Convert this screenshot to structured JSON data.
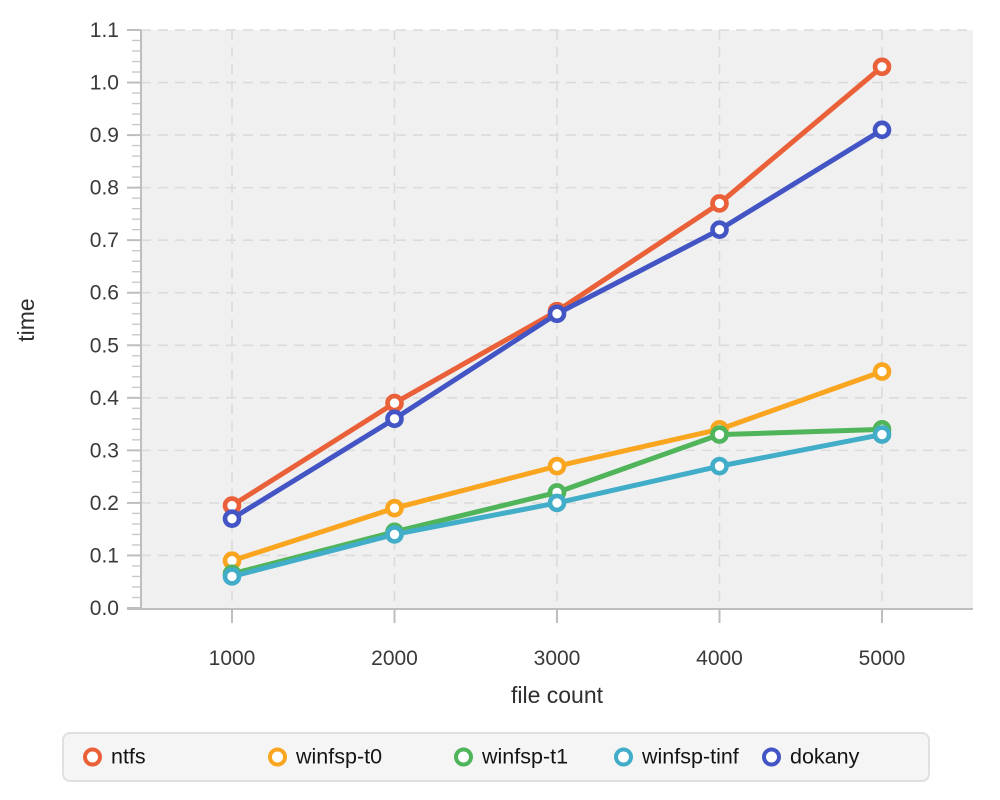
{
  "chart_data": {
    "type": "line",
    "title": "",
    "xlabel": "file count",
    "ylabel": "time",
    "x": [
      1000,
      2000,
      3000,
      4000,
      5000
    ],
    "x_ticks": [
      "1000",
      "2000",
      "3000",
      "4000",
      "5000"
    ],
    "y_ticks": [
      "0.0",
      "0.1",
      "0.2",
      "0.3",
      "0.4",
      "0.5",
      "0.6",
      "0.7",
      "0.8",
      "0.9",
      "1.0",
      "1.1"
    ],
    "xlim": [
      440,
      5560
    ],
    "ylim": [
      0,
      1.1
    ],
    "y_minor_step": 0.02,
    "grid": "dashed",
    "legend_position": "bottom",
    "series": [
      {
        "name": "ntfs",
        "color": "#EA6038",
        "values": [
          0.195,
          0.39,
          0.565,
          0.77,
          1.03
        ]
      },
      {
        "name": "winfsp-t0",
        "color": "#F9A51F",
        "values": [
          0.09,
          0.19,
          0.27,
          0.34,
          0.45
        ]
      },
      {
        "name": "winfsp-t1",
        "color": "#4FB45A",
        "values": [
          0.065,
          0.145,
          0.22,
          0.33,
          0.34
        ]
      },
      {
        "name": "winfsp-tinf",
        "color": "#42ADC8",
        "values": [
          0.06,
          0.14,
          0.2,
          0.27,
          0.33
        ]
      },
      {
        "name": "dokany",
        "color": "#4355C5",
        "values": [
          0.17,
          0.36,
          0.56,
          0.72,
          0.91
        ]
      }
    ],
    "styles": {
      "plot_bg": "#F0F0F0",
      "page_bg": "#FFFFFF",
      "grid_color": "#DBDBDB",
      "minor_tick_color": "#C9C9C9",
      "axis_color": "#BEBEBE",
      "tick_label_color": "#3A3A3A",
      "axis_title_color": "#2E2E2E",
      "legend_bg": "#F5F5F5",
      "legend_border": "#E0E0E0",
      "legend_text_color": "#141414",
      "marker_fill": "#FFFFFF"
    }
  }
}
